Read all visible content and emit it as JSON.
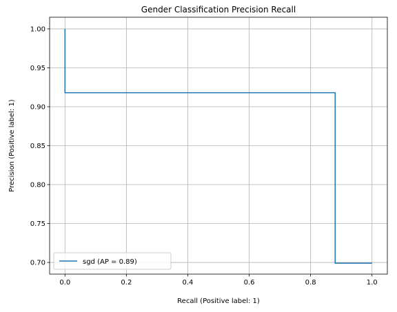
{
  "chart_data": {
    "type": "line",
    "title": "Gender Classification Precision Recall",
    "xlabel": "Recall (Positive label: 1)",
    "ylabel": "Precision (Positive label: 1)",
    "xlim": [
      -0.05,
      1.05
    ],
    "ylim": [
      0.685,
      1.015
    ],
    "xticks": [
      0.0,
      0.2,
      0.4,
      0.6,
      0.8,
      1.0
    ],
    "xtick_labels": [
      "0.0",
      "0.2",
      "0.4",
      "0.6",
      "0.8",
      "1.0"
    ],
    "yticks": [
      0.7,
      0.75,
      0.8,
      0.85,
      0.9,
      0.95,
      1.0
    ],
    "ytick_labels": [
      "0.70",
      "0.75",
      "0.80",
      "0.85",
      "0.90",
      "0.95",
      "1.00"
    ],
    "grid": true,
    "legend_position": "lower-left",
    "series": [
      {
        "name": "sgd (AP = 0.89)",
        "color": "#1f77b4",
        "x": [
          0.0,
          0.0,
          0.88,
          0.88,
          1.0
        ],
        "y": [
          1.0,
          0.918,
          0.918,
          0.699,
          0.699
        ]
      }
    ]
  }
}
